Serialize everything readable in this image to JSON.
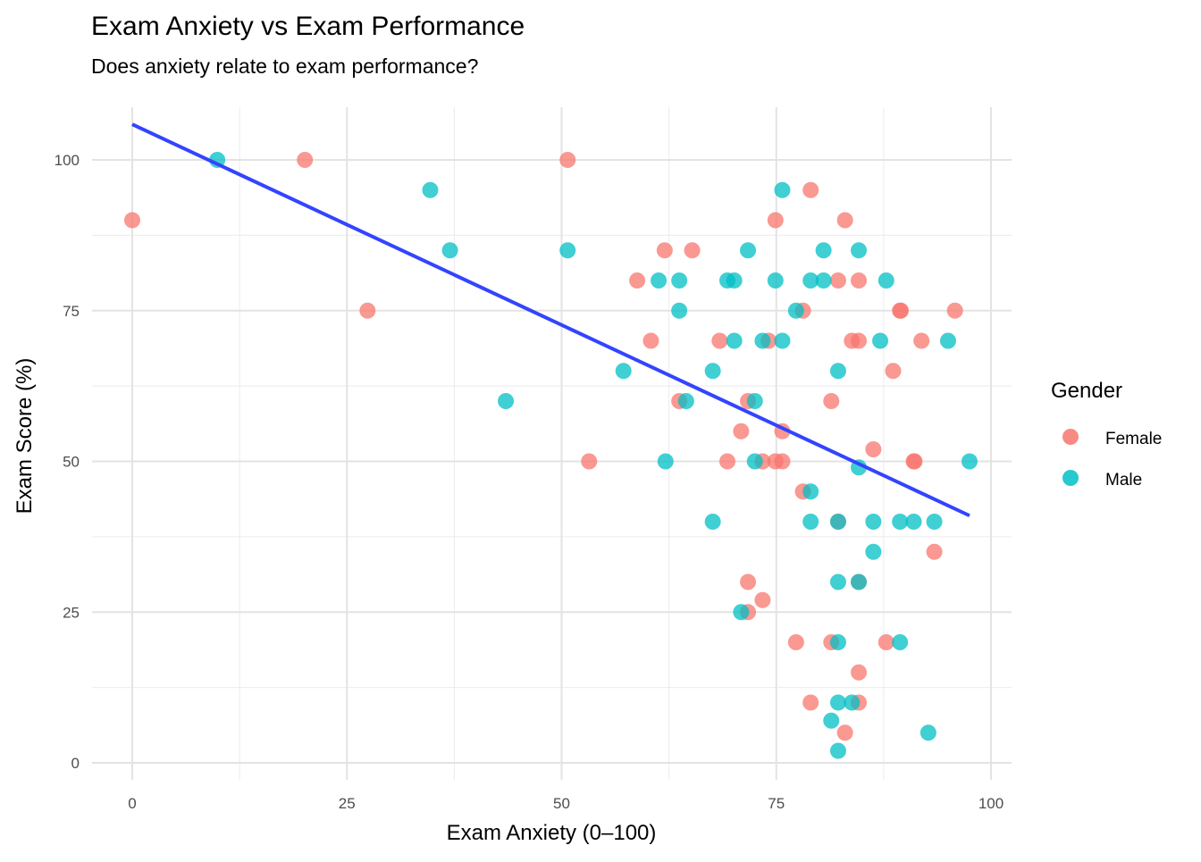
{
  "chart_data": {
    "type": "scatter",
    "title": "Exam Anxiety vs Exam Performance",
    "subtitle": "Does anxiety relate to exam performance?",
    "xlabel": "Exam Anxiety (0–100)",
    "ylabel": "Exam Score (%)",
    "xlim": [
      -4.5,
      102.5
    ],
    "ylim": [
      -3,
      108
    ],
    "xticks": [
      0,
      25,
      50,
      75,
      100
    ],
    "yticks": [
      0,
      25,
      50,
      75,
      100
    ],
    "grid": true,
    "legend": {
      "title": "Gender",
      "position": "right"
    },
    "series": [
      {
        "name": "Female",
        "color": "#F8766D",
        "points": [
          [
            0,
            90
          ],
          [
            20.1,
            100
          ],
          [
            27.4,
            75
          ],
          [
            50.7,
            100
          ],
          [
            53.2,
            50
          ],
          [
            58.8,
            80
          ],
          [
            60.4,
            70
          ],
          [
            62.0,
            85
          ],
          [
            65.2,
            85
          ],
          [
            63.7,
            60
          ],
          [
            68.4,
            70
          ],
          [
            69.3,
            50
          ],
          [
            70.9,
            55
          ],
          [
            71.7,
            60
          ],
          [
            71.7,
            30
          ],
          [
            71.7,
            25
          ],
          [
            73.4,
            27
          ],
          [
            73.4,
            50
          ],
          [
            74.1,
            70
          ],
          [
            74.9,
            90
          ],
          [
            74.9,
            50
          ],
          [
            75.7,
            50
          ],
          [
            75.7,
            55
          ],
          [
            77.3,
            20
          ],
          [
            78.1,
            75
          ],
          [
            78.1,
            45
          ],
          [
            79,
            95
          ],
          [
            79,
            10
          ],
          [
            81.4,
            60
          ],
          [
            81.4,
            20
          ],
          [
            82.2,
            80
          ],
          [
            82.2,
            40
          ],
          [
            83,
            90
          ],
          [
            83,
            5
          ],
          [
            83.8,
            70
          ],
          [
            84.6,
            70
          ],
          [
            84.6,
            80
          ],
          [
            84.6,
            30
          ],
          [
            84.6,
            15
          ],
          [
            84.6,
            10
          ],
          [
            86.3,
            52
          ],
          [
            87.8,
            20
          ],
          [
            88.6,
            65
          ],
          [
            89.4,
            75
          ],
          [
            89.5,
            75
          ],
          [
            91,
            50
          ],
          [
            91.1,
            50
          ],
          [
            91.9,
            70
          ],
          [
            93.4,
            35
          ],
          [
            95.8,
            75
          ]
        ]
      },
      {
        "name": "Male",
        "color": "#00BFC4",
        "points": [
          [
            9.9,
            100
          ],
          [
            34.7,
            95
          ],
          [
            37,
            85
          ],
          [
            43.5,
            60
          ],
          [
            50.7,
            85
          ],
          [
            57.2,
            65
          ],
          [
            61.3,
            80
          ],
          [
            62.1,
            50
          ],
          [
            63.7,
            80
          ],
          [
            63.7,
            75
          ],
          [
            64.5,
            60
          ],
          [
            67.6,
            65
          ],
          [
            67.6,
            40
          ],
          [
            69.3,
            80
          ],
          [
            70.1,
            80
          ],
          [
            70.1,
            70
          ],
          [
            70.9,
            25
          ],
          [
            71.7,
            85
          ],
          [
            72.5,
            60
          ],
          [
            72.5,
            50
          ],
          [
            73.4,
            70
          ],
          [
            74.9,
            80
          ],
          [
            75.7,
            95
          ],
          [
            75.7,
            70
          ],
          [
            77.3,
            75
          ],
          [
            79,
            80
          ],
          [
            79,
            45
          ],
          [
            79,
            40
          ],
          [
            80.5,
            85
          ],
          [
            80.5,
            80
          ],
          [
            82.2,
            65
          ],
          [
            82.2,
            40
          ],
          [
            82.2,
            30
          ],
          [
            82.2,
            20
          ],
          [
            82.2,
            10
          ],
          [
            82.2,
            2
          ],
          [
            81.4,
            7
          ],
          [
            83.8,
            10
          ],
          [
            84.6,
            85
          ],
          [
            84.6,
            49
          ],
          [
            84.6,
            30
          ],
          [
            86.3,
            40
          ],
          [
            86.3,
            35
          ],
          [
            87.1,
            70
          ],
          [
            87.8,
            80
          ],
          [
            89.4,
            40
          ],
          [
            89.4,
            20
          ],
          [
            91,
            40
          ],
          [
            92.7,
            5
          ],
          [
            93.4,
            40
          ],
          [
            95,
            70
          ],
          [
            97.5,
            50
          ]
        ]
      }
    ],
    "trendline": {
      "type": "linear",
      "color": "#3344FF",
      "x": [
        0,
        97.5
      ],
      "y": [
        105.9,
        41.0
      ]
    }
  }
}
